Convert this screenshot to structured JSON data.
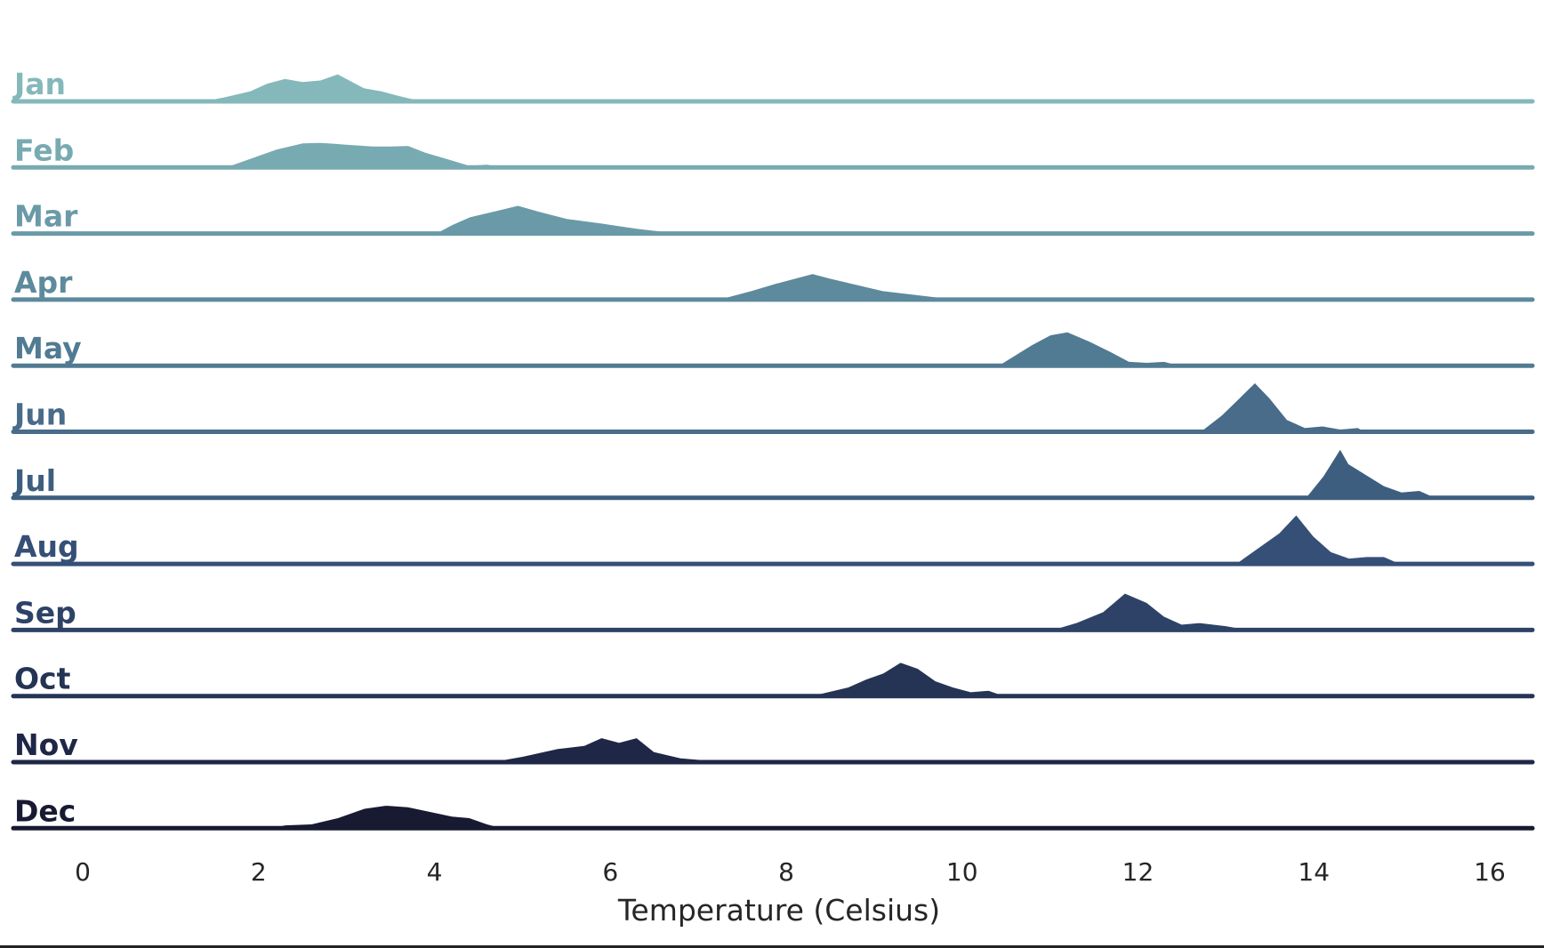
{
  "chart_data": {
    "type": "area",
    "subtype": "ridgeline",
    "xlabel": "Temperature (Celsius)",
    "xlim": [
      -0.8,
      16.4
    ],
    "xticks": [
      0,
      2,
      4,
      6,
      8,
      10,
      12,
      14,
      16
    ],
    "grid": false,
    "legend": "none",
    "series": [
      {
        "name": "Jan",
        "color": "#85b8bb",
        "x": [
          1.3,
          1.6,
          1.9,
          2.1,
          2.3,
          2.5,
          2.7,
          2.9,
          3.0,
          3.2,
          3.4,
          3.6,
          3.9
        ],
        "y": [
          0.0,
          0.15,
          0.35,
          0.6,
          0.75,
          0.65,
          0.7,
          0.9,
          0.75,
          0.45,
          0.35,
          0.2,
          0.0
        ]
      },
      {
        "name": "Feb",
        "color": "#78aab1",
        "x": [
          1.6,
          1.9,
          2.2,
          2.5,
          2.7,
          3.0,
          3.3,
          3.5,
          3.7,
          3.9,
          4.2,
          4.4,
          4.6,
          4.8
        ],
        "y": [
          0.0,
          0.3,
          0.6,
          0.8,
          0.82,
          0.76,
          0.7,
          0.7,
          0.72,
          0.5,
          0.25,
          0.08,
          0.12,
          0.0
        ]
      },
      {
        "name": "Mar",
        "color": "#6a9aa7",
        "x": [
          4.0,
          4.2,
          4.4,
          4.7,
          4.95,
          5.2,
          5.5,
          5.9,
          6.3,
          6.7,
          7.0
        ],
        "y": [
          0.0,
          0.3,
          0.55,
          0.75,
          0.92,
          0.72,
          0.5,
          0.35,
          0.18,
          0.05,
          0.0
        ]
      },
      {
        "name": "Apr",
        "color": "#5d8a9c",
        "x": [
          7.2,
          7.6,
          7.9,
          8.1,
          8.3,
          8.5,
          8.8,
          9.1,
          9.4,
          9.7,
          10.0
        ],
        "y": [
          0.0,
          0.3,
          0.55,
          0.7,
          0.85,
          0.7,
          0.5,
          0.3,
          0.2,
          0.1,
          0.0
        ]
      },
      {
        "name": "May",
        "color": "#517b92",
        "x": [
          10.4,
          10.6,
          10.8,
          11.0,
          11.2,
          11.45,
          11.7,
          11.9,
          12.1,
          12.3,
          12.5
        ],
        "y": [
          0.0,
          0.35,
          0.7,
          1.0,
          1.1,
          0.8,
          0.45,
          0.15,
          0.12,
          0.15,
          0.0
        ]
      },
      {
        "name": "Jun",
        "color": "#486c89",
        "x": [
          12.7,
          12.95,
          13.15,
          13.33,
          13.5,
          13.7,
          13.9,
          14.1,
          14.3,
          14.5,
          14.6
        ],
        "y": [
          0.0,
          0.55,
          1.1,
          1.6,
          1.1,
          0.4,
          0.15,
          0.2,
          0.1,
          0.15,
          0.0
        ]
      },
      {
        "name": "Jul",
        "color": "#3e5e80",
        "x": [
          13.9,
          14.1,
          14.3,
          14.4,
          14.6,
          14.8,
          15.0,
          15.2,
          15.4
        ],
        "y": [
          0.0,
          0.7,
          1.6,
          1.1,
          0.75,
          0.4,
          0.2,
          0.25,
          0.0
        ]
      },
      {
        "name": "Aug",
        "color": "#354f76",
        "x": [
          13.1,
          13.35,
          13.6,
          13.8,
          14.0,
          14.2,
          14.4,
          14.6,
          14.8,
          15.0
        ],
        "y": [
          0.0,
          0.5,
          1.0,
          1.6,
          0.9,
          0.4,
          0.2,
          0.25,
          0.25,
          0.0
        ]
      },
      {
        "name": "Sep",
        "color": "#2d4266",
        "x": [
          11.0,
          11.3,
          11.6,
          11.85,
          12.1,
          12.3,
          12.5,
          12.7,
          13.0,
          13.3
        ],
        "y": [
          0.0,
          0.25,
          0.6,
          1.2,
          0.9,
          0.45,
          0.2,
          0.25,
          0.15,
          0.0
        ]
      },
      {
        "name": "Oct",
        "color": "#253454",
        "x": [
          8.0,
          8.4,
          8.7,
          8.9,
          9.1,
          9.3,
          9.5,
          9.7,
          9.9,
          10.1,
          10.3,
          10.5
        ],
        "y": [
          0.0,
          0.1,
          0.3,
          0.55,
          0.75,
          1.1,
          0.9,
          0.5,
          0.3,
          0.15,
          0.2,
          0.0
        ]
      },
      {
        "name": "Nov",
        "color": "#1f2747",
        "x": [
          4.6,
          5.0,
          5.4,
          5.7,
          5.9,
          6.1,
          6.3,
          6.5,
          6.8,
          7.1,
          7.4,
          7.6
        ],
        "y": [
          0.0,
          0.2,
          0.45,
          0.55,
          0.8,
          0.65,
          0.8,
          0.35,
          0.15,
          0.08,
          0.1,
          0.0
        ]
      },
      {
        "name": "Dec",
        "color": "#171a31",
        "x": [
          2.1,
          2.3,
          2.6,
          2.9,
          3.2,
          3.45,
          3.7,
          3.95,
          4.2,
          4.4,
          4.6,
          4.8
        ],
        "y": [
          0.0,
          0.12,
          0.15,
          0.35,
          0.65,
          0.75,
          0.7,
          0.55,
          0.4,
          0.35,
          0.15,
          0.0
        ]
      }
    ]
  }
}
